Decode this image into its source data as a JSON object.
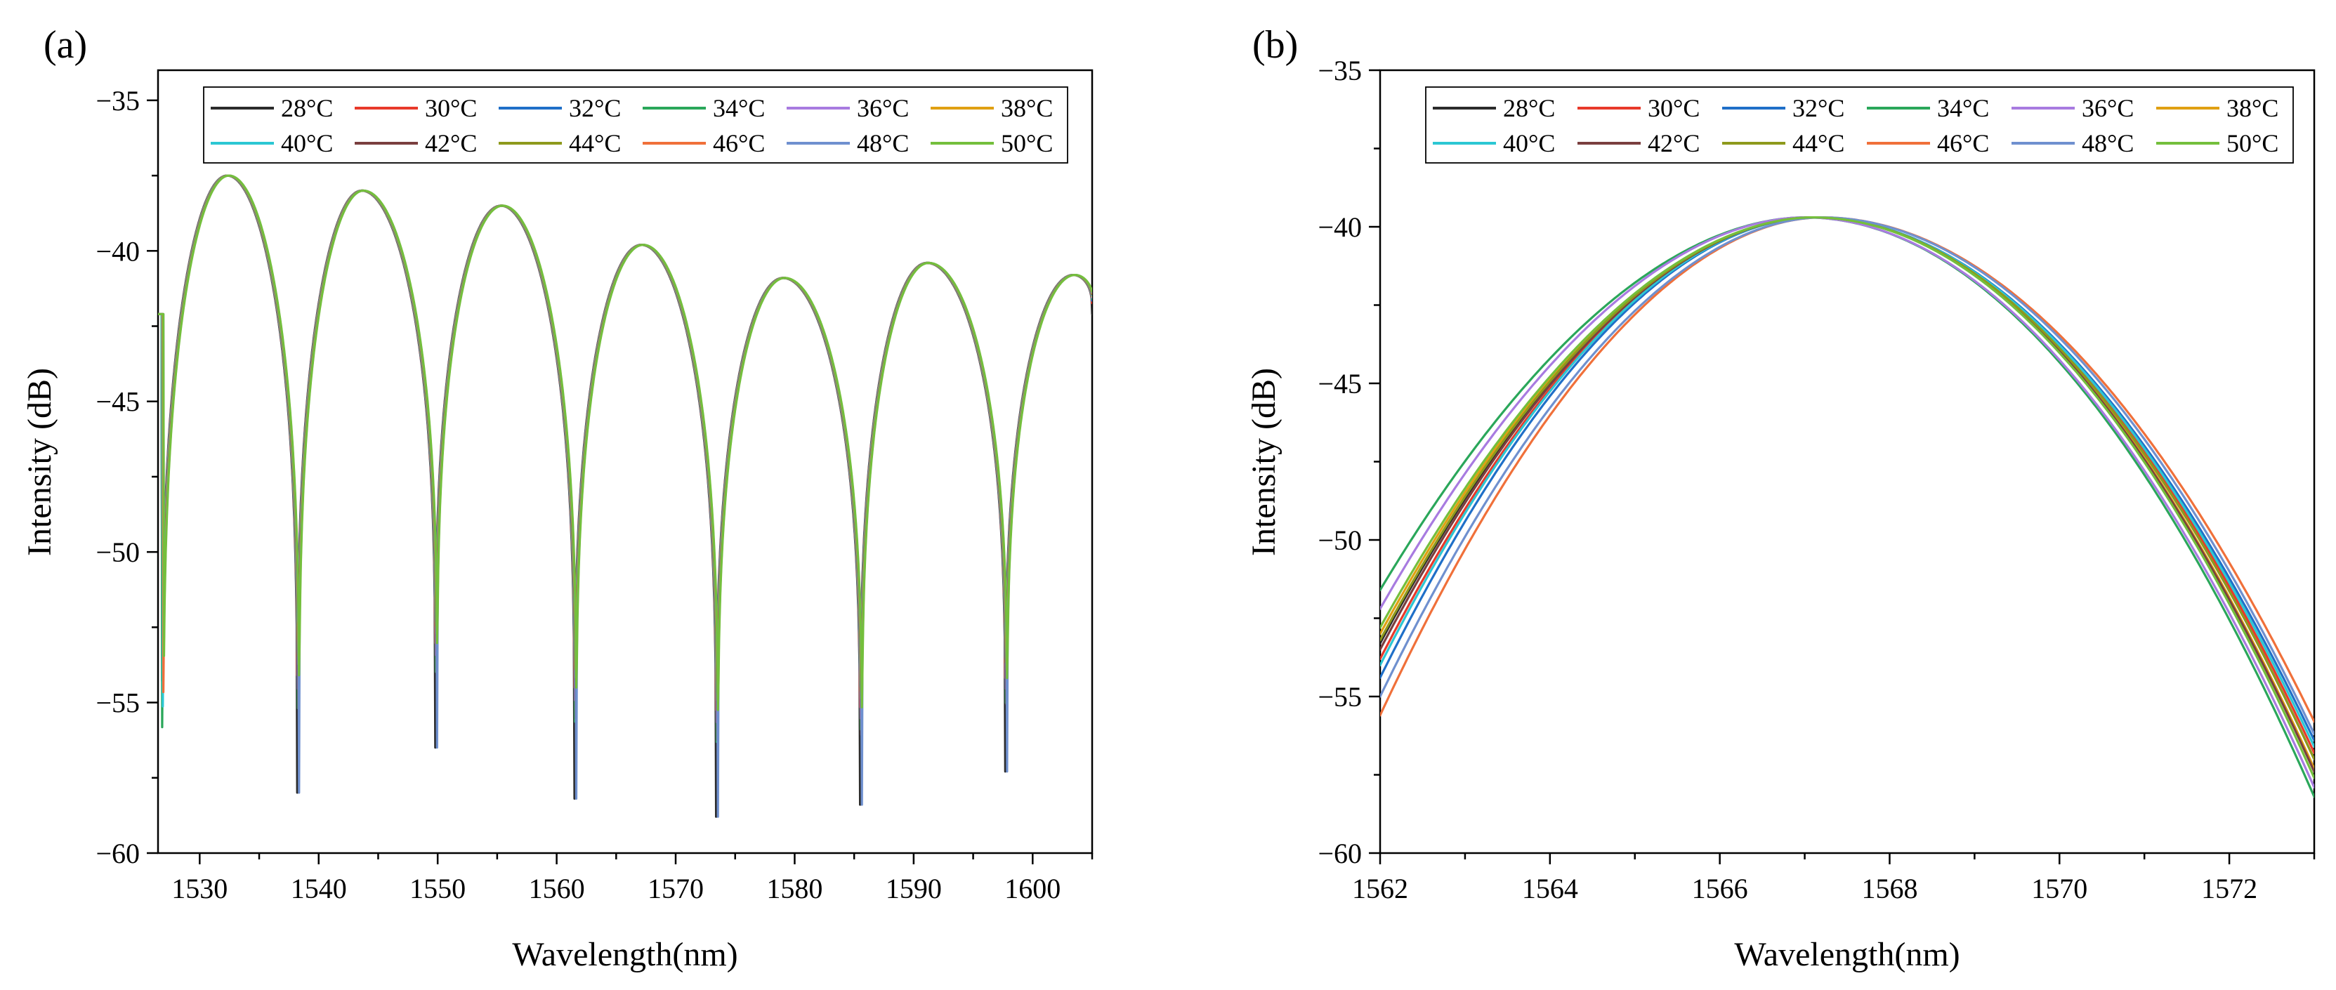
{
  "colors": {
    "28°C": "#2b2b2b",
    "30°C": "#e8392a",
    "32°C": "#1f6fc8",
    "34°C": "#2aa75a",
    "36°C": "#a87be0",
    "38°C": "#e0a012",
    "40°C": "#2cc7d3",
    "42°C": "#7a3f3f",
    "44°C": "#8e9a1c",
    "46°C": "#f0703a",
    "48°C": "#6f90cf",
    "50°C": "#74bf3c"
  },
  "chart_data": [
    {
      "panel": "(a)",
      "type": "line",
      "xlabel": "Wavelength(nm)",
      "ylabel": "Intensity (dB)",
      "xlim": [
        1526.5,
        1605
      ],
      "ylim": [
        -60,
        -34
      ],
      "xticks": [
        1530,
        1540,
        1550,
        1560,
        1570,
        1580,
        1590,
        1600
      ],
      "yticks": [
        -60,
        -55,
        -50,
        -45,
        -40,
        -35
      ],
      "legend_position": "top-left (2 rows × 6)",
      "grid": false,
      "series": [
        {
          "name": "28°C",
          "shift": 0.0
        },
        {
          "name": "30°C",
          "shift": 0.05
        },
        {
          "name": "32°C",
          "shift": 0.1
        },
        {
          "name": "34°C",
          "shift": 0.15
        },
        {
          "name": "36°C",
          "shift": 0.2
        },
        {
          "name": "38°C",
          "shift": 0.25
        },
        {
          "name": "40°C",
          "shift": 0.3
        },
        {
          "name": "42°C",
          "shift": 0.35
        },
        {
          "name": "44°C",
          "shift": 0.4
        },
        {
          "name": "46°C",
          "shift": 0.45
        },
        {
          "name": "48°C",
          "shift": 0.5
        },
        {
          "name": "50°C",
          "shift": 0.55
        }
      ],
      "peaks": [
        {
          "x": 1532.3,
          "y": -37.5
        },
        {
          "x": 1543.6,
          "y": -38.0
        },
        {
          "x": 1555.3,
          "y": -38.5
        },
        {
          "x": 1567.1,
          "y": -39.8
        },
        {
          "x": 1579.0,
          "y": -40.9
        },
        {
          "x": 1591.1,
          "y": -40.4
        },
        {
          "x": 1603.4,
          "y": -40.8
        }
      ],
      "dips": [
        {
          "x": 1526.8,
          "y": -58.8
        },
        {
          "x": 1538.2,
          "y": -58.0
        },
        {
          "x": 1549.8,
          "y": -56.5
        },
        {
          "x": 1561.5,
          "y": -58.2
        },
        {
          "x": 1573.4,
          "y": -58.8
        },
        {
          "x": 1585.5,
          "y": -58.4
        },
        {
          "x": 1597.7,
          "y": -57.3
        }
      ],
      "end_point": {
        "x": 1605,
        "y": -42.1
      }
    },
    {
      "panel": "(b)",
      "type": "line",
      "xlabel": "Wavelength(nm)",
      "ylabel": "Intensity (dB)",
      "xlim": [
        1562,
        1573
      ],
      "ylim": [
        -60,
        -35
      ],
      "xticks": [
        1562,
        1564,
        1566,
        1568,
        1570,
        1572
      ],
      "yticks": [
        -60,
        -55,
        -50,
        -45,
        -40,
        -35
      ],
      "legend_position": "top (2 rows × 6)",
      "grid": false,
      "series": [
        {
          "name": "28°C",
          "points": [
            [
              1562,
              -53.3
            ],
            [
              1567.1,
              -39.7
            ],
            [
              1573,
              -57.0
            ]
          ]
        },
        {
          "name": "30°C",
          "points": [
            [
              1562,
              -53.8
            ],
            [
              1567.1,
              -39.7
            ],
            [
              1573,
              -56.8
            ]
          ]
        },
        {
          "name": "32°C",
          "points": [
            [
              1562,
              -54.4
            ],
            [
              1567.1,
              -39.7
            ],
            [
              1573,
              -56.4
            ]
          ]
        },
        {
          "name": "34°C",
          "points": [
            [
              1562,
              -51.6
            ],
            [
              1567.0,
              -39.7
            ],
            [
              1573,
              -58.2
            ]
          ]
        },
        {
          "name": "36°C",
          "points": [
            [
              1562,
              -52.2
            ],
            [
              1567.0,
              -39.7
            ],
            [
              1573,
              -57.9
            ]
          ]
        },
        {
          "name": "38°C",
          "points": [
            [
              1562,
              -53.0
            ],
            [
              1567.1,
              -39.7
            ],
            [
              1573,
              -57.3
            ]
          ]
        },
        {
          "name": "40°C",
          "points": [
            [
              1562,
              -54.0
            ],
            [
              1567.1,
              -39.7
            ],
            [
              1573,
              -56.6
            ]
          ]
        },
        {
          "name": "42°C",
          "points": [
            [
              1562,
              -53.5
            ],
            [
              1567.1,
              -39.7
            ],
            [
              1573,
              -57.4
            ]
          ]
        },
        {
          "name": "44°C",
          "points": [
            [
              1562,
              -53.2
            ],
            [
              1567.1,
              -39.7
            ],
            [
              1573,
              -57.0
            ]
          ]
        },
        {
          "name": "46°C",
          "points": [
            [
              1562,
              -55.6
            ],
            [
              1567.2,
              -39.7
            ],
            [
              1573,
              -55.8
            ]
          ]
        },
        {
          "name": "48°C",
          "points": [
            [
              1562,
              -55.0
            ],
            [
              1567.2,
              -39.7
            ],
            [
              1573,
              -56.2
            ]
          ]
        },
        {
          "name": "50°C",
          "points": [
            [
              1562,
              -52.8
            ],
            [
              1567.1,
              -39.7
            ],
            [
              1573,
              -57.6
            ]
          ]
        }
      ]
    }
  ]
}
